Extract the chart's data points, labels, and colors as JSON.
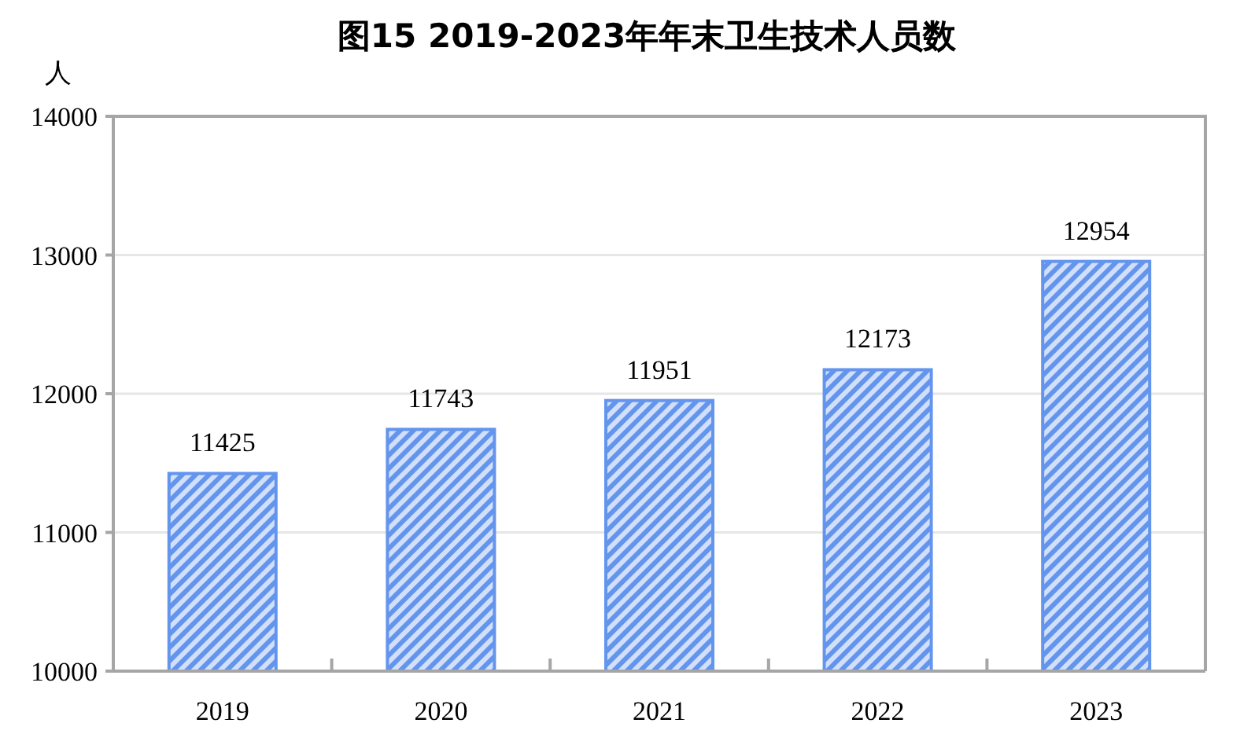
{
  "chart_data": {
    "type": "bar",
    "title": "图15 2019-2023年年末卫生技术人员数",
    "ylabel": "人",
    "categories": [
      "2019",
      "2020",
      "2021",
      "2022",
      "2023"
    ],
    "values": [
      11425,
      11743,
      11951,
      12173,
      12954
    ],
    "color": "#6495ed",
    "ylim": [
      10000,
      14000
    ],
    "yticks": [
      10000,
      11000,
      12000,
      13000,
      14000
    ],
    "grid": "y",
    "data_labels": true
  }
}
